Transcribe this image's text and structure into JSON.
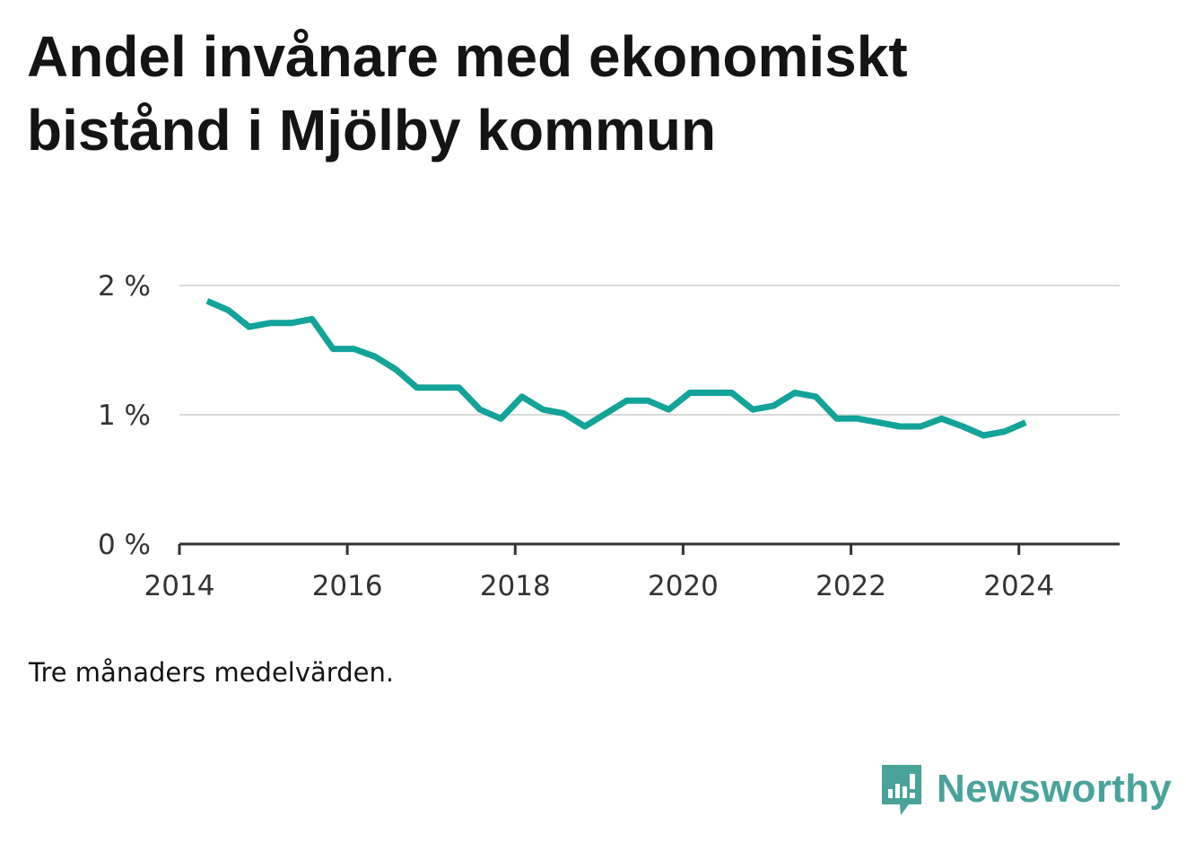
{
  "title": "Andel invånare med ekonomiskt bistånd i Mjölby kommun",
  "note": "Tre månaders medelvärden.",
  "brand": {
    "name": "Newsworthy",
    "color": "#4aa39a",
    "icon": "bar-chart-speech-bubble-icon"
  },
  "colors": {
    "line": "#12a399",
    "grid": "#d9d9d9",
    "axis": "#333333",
    "tick_text": "#333333"
  },
  "chart_data": {
    "type": "line",
    "title": "",
    "xlabel": "",
    "ylabel": "",
    "ylim": [
      0,
      2
    ],
    "xlim": [
      2014,
      2025.2
    ],
    "yticks": [
      {
        "value": 0,
        "label": "0 %"
      },
      {
        "value": 1,
        "label": "1 %"
      },
      {
        "value": 2,
        "label": "2 %"
      }
    ],
    "xticks": [
      {
        "value": 2014,
        "label": "2014"
      },
      {
        "value": 2016,
        "label": "2016"
      },
      {
        "value": 2018,
        "label": "2018"
      },
      {
        "value": 2020,
        "label": "2020"
      },
      {
        "value": 2022,
        "label": "2022"
      },
      {
        "value": 2024,
        "label": "2024"
      }
    ],
    "grid": true,
    "series": [
      {
        "color": "#12a399",
        "x": [
          2014.33,
          2014.58,
          2014.83,
          2015.08,
          2015.33,
          2015.58,
          2015.83,
          2016.08,
          2016.33,
          2016.58,
          2016.83,
          2017.08,
          2017.33,
          2017.58,
          2017.83,
          2018.08,
          2018.33,
          2018.58,
          2018.83,
          2019.08,
          2019.33,
          2019.58,
          2019.83,
          2020.08,
          2020.33,
          2020.58,
          2020.83,
          2021.08,
          2021.33,
          2021.58,
          2021.83,
          2022.08,
          2022.33,
          2022.58,
          2022.83,
          2023.08,
          2023.33,
          2023.58,
          2023.83,
          2024.08
        ],
        "y": [
          1.88,
          1.81,
          1.68,
          1.71,
          1.71,
          1.74,
          1.51,
          1.51,
          1.45,
          1.35,
          1.21,
          1.21,
          1.21,
          1.04,
          0.97,
          1.14,
          1.04,
          1.01,
          0.91,
          1.01,
          1.11,
          1.11,
          1.04,
          1.17,
          1.17,
          1.17,
          1.04,
          1.07,
          1.17,
          1.14,
          0.97,
          0.97,
          0.94,
          0.91,
          0.91,
          0.97,
          0.91,
          0.84,
          0.87,
          0.94
        ]
      }
    ]
  }
}
